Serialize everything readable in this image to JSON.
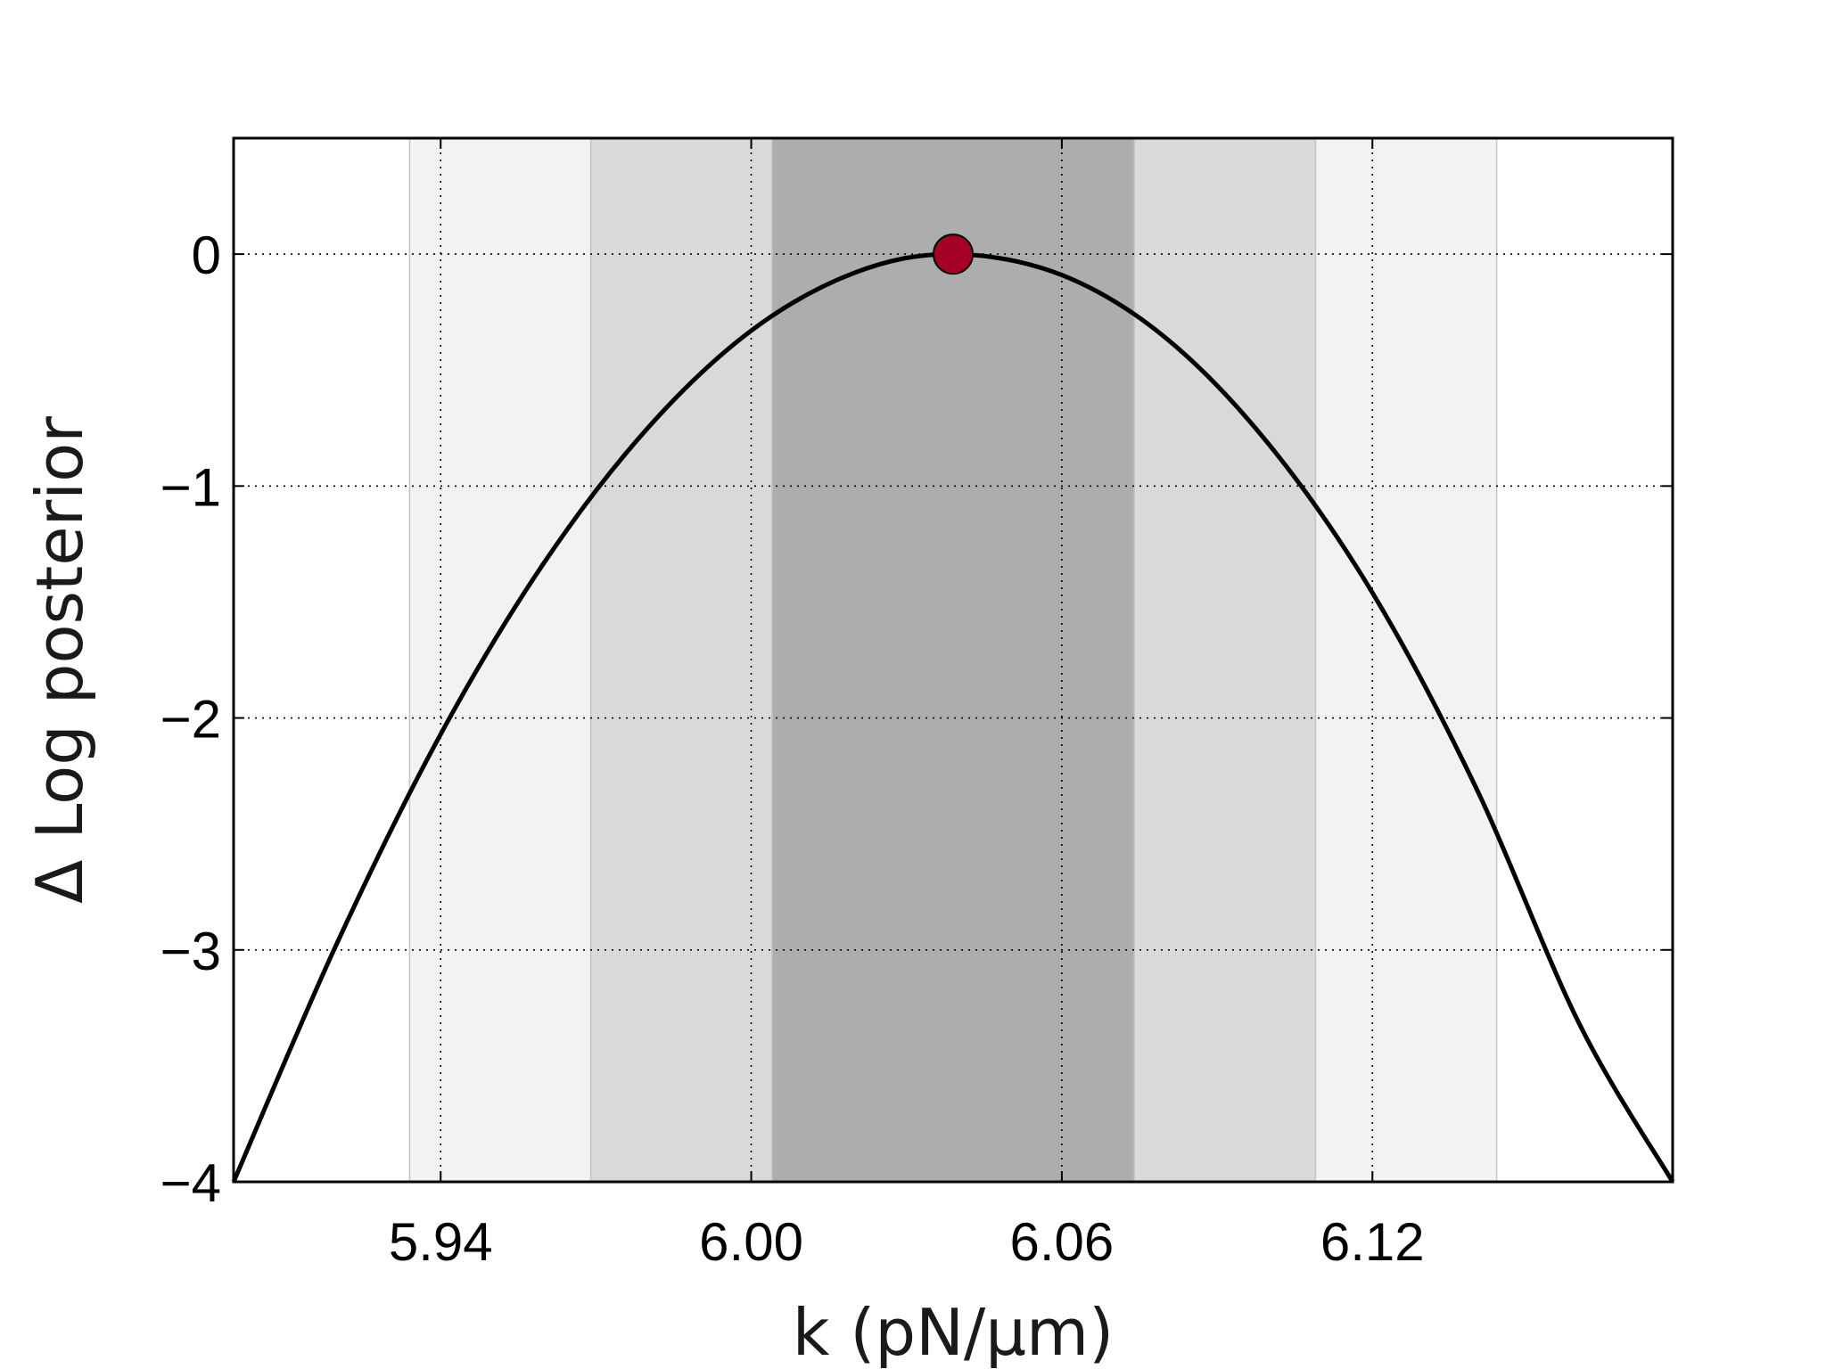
{
  "chart_data": {
    "type": "line",
    "xlabel": "k (pN/μm)",
    "ylabel": "Δ Log posterior",
    "xlim": [
      5.9,
      6.178
    ],
    "ylim": [
      -4,
      0.5
    ],
    "x_ticks": [
      5.94,
      6.0,
      6.06,
      6.12
    ],
    "x_tick_labels": [
      "5.94",
      "6.00",
      "6.06",
      "6.12"
    ],
    "y_ticks": [
      0,
      -1,
      -2,
      -3,
      -4
    ],
    "y_tick_labels": [
      "0",
      "−1",
      "−2",
      "−3",
      "−4"
    ],
    "grid": true,
    "series": [
      {
        "color": "#000000",
        "x": [
          5.9,
          5.92,
          5.94,
          5.96,
          5.98,
          6.0,
          6.02,
          6.039,
          6.06,
          6.08,
          6.1,
          6.12,
          6.14,
          6.16,
          6.178
        ],
        "y": [
          -4.0,
          -2.97,
          -2.07,
          -1.33,
          -0.75,
          -0.33,
          -0.08,
          0.0,
          -0.09,
          -0.36,
          -0.82,
          -1.46,
          -2.3,
          -3.32,
          -4.0
        ]
      }
    ],
    "maximum": {
      "x": 6.039,
      "y": 0,
      "color": "#a50026"
    },
    "intervals": [
      {
        "range": [
          5.934,
          6.144
        ],
        "color": "#f2f2f2"
      },
      {
        "range": [
          5.969,
          6.109
        ],
        "color": "#d9d9d9"
      },
      {
        "range": [
          6.004,
          6.074
        ],
        "color": "#adadad"
      }
    ]
  }
}
